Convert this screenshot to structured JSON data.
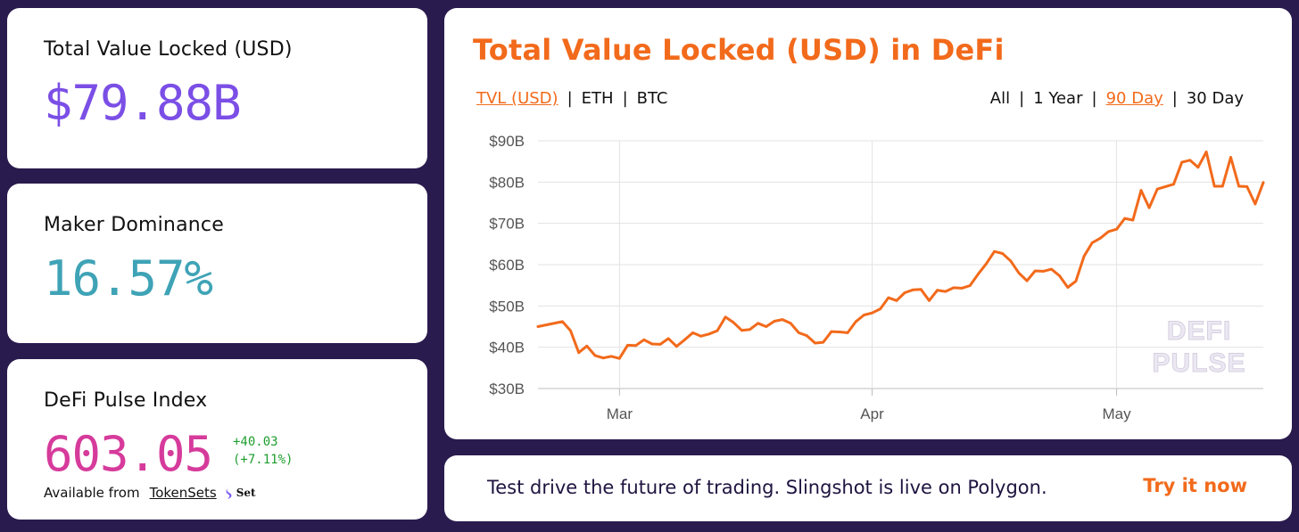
{
  "tvl_card": {
    "label": "Total Value Locked (USD)",
    "value": "$79.88B"
  },
  "maker_card": {
    "label": "Maker Dominance",
    "value": "16.57%"
  },
  "dpi_card": {
    "label": "DeFi Pulse Index",
    "value": "603.05",
    "change_abs": "+40.03",
    "change_pct": "(+7.11%)",
    "available_text": "Available from",
    "link_label": "TokenSets",
    "set_logo_text": "Set"
  },
  "chart_card": {
    "title": "Total Value Locked (USD) in DeFi",
    "currency_options": [
      {
        "label": "TVL (USD)",
        "active": true
      },
      {
        "label": "ETH",
        "active": false
      },
      {
        "label": "BTC",
        "active": false
      }
    ],
    "range_options": [
      {
        "label": "All",
        "active": false
      },
      {
        "label": "1 Year",
        "active": false
      },
      {
        "label": "90 Day",
        "active": true
      },
      {
        "label": "30 Day",
        "active": false
      }
    ],
    "watermark_lines": [
      "DEFI",
      "PULSE"
    ]
  },
  "promo": {
    "text": "Test drive the future of trading. Slingshot is live on Polygon.",
    "cta": "Try it now"
  },
  "colors": {
    "background": "#2a1b4e",
    "accent_orange": "#f26a1b",
    "tvl_purple": "#7b4fe6",
    "maker_teal": "#3fa3b6",
    "dpi_pink": "#d63b9b",
    "positive_green": "#1e9e2e"
  },
  "chart_data": {
    "type": "line",
    "title": "Total Value Locked (USD) in DeFi",
    "xlabel": "",
    "ylabel": "",
    "ylim": [
      30,
      90
    ],
    "y_ticks": [
      30,
      40,
      50,
      60,
      70,
      80,
      90
    ],
    "y_tick_labels": [
      "$30B",
      "$40B",
      "$50B",
      "$60B",
      "$70B",
      "$80B",
      "$90B"
    ],
    "y_unit": "USD billions",
    "x_ticks": [
      "Mar",
      "Apr",
      "May"
    ],
    "x_tick_dates": [
      "2021-03-01",
      "2021-04-01",
      "2021-05-01"
    ],
    "x_range": [
      "2021-02-19",
      "2021-05-19"
    ],
    "grid": true,
    "legend": "none",
    "x": [
      "2021-02-19",
      "2021-02-22",
      "2021-02-23",
      "2021-02-24",
      "2021-02-25",
      "2021-02-26",
      "2021-02-27",
      "2021-02-28",
      "2021-03-01",
      "2021-03-02",
      "2021-03-03",
      "2021-03-04",
      "2021-03-05",
      "2021-03-06",
      "2021-03-07",
      "2021-03-08",
      "2021-03-09",
      "2021-03-10",
      "2021-03-11",
      "2021-03-12",
      "2021-03-13",
      "2021-03-14",
      "2021-03-15",
      "2021-03-16",
      "2021-03-17",
      "2021-03-18",
      "2021-03-19",
      "2021-03-20",
      "2021-03-21",
      "2021-03-22",
      "2021-03-23",
      "2021-03-24",
      "2021-03-25",
      "2021-03-26",
      "2021-03-27",
      "2021-03-28",
      "2021-03-29",
      "2021-03-30",
      "2021-03-31",
      "2021-04-01",
      "2021-04-02",
      "2021-04-03",
      "2021-04-04",
      "2021-04-05",
      "2021-04-06",
      "2021-04-07",
      "2021-04-08",
      "2021-04-09",
      "2021-04-10",
      "2021-04-11",
      "2021-04-12",
      "2021-04-13",
      "2021-04-14",
      "2021-04-15",
      "2021-04-16",
      "2021-04-17",
      "2021-04-18",
      "2021-04-19",
      "2021-04-20",
      "2021-04-21",
      "2021-04-22",
      "2021-04-23",
      "2021-04-24",
      "2021-04-25",
      "2021-04-26",
      "2021-04-27",
      "2021-04-28",
      "2021-04-29",
      "2021-04-30",
      "2021-05-01",
      "2021-05-02",
      "2021-05-03",
      "2021-05-04",
      "2021-05-05",
      "2021-05-06",
      "2021-05-07",
      "2021-05-08",
      "2021-05-09",
      "2021-05-10",
      "2021-05-11",
      "2021-05-12",
      "2021-05-13",
      "2021-05-14",
      "2021-05-15",
      "2021-05-16",
      "2021-05-17",
      "2021-05-18",
      "2021-05-19"
    ],
    "series": [
      {
        "values": [
          45.0,
          46.2,
          44.0,
          38.7,
          40.3,
          38.0,
          37.4,
          37.8,
          37.3,
          40.5,
          40.4,
          41.8,
          40.8,
          40.7,
          42.1,
          40.2,
          41.8,
          43.5,
          42.7,
          43.2,
          44.0,
          47.3,
          46.0,
          44.1,
          44.3,
          45.8,
          45.0,
          46.3,
          46.7,
          45.8,
          43.5,
          42.8,
          41.0,
          41.2,
          43.8,
          43.7,
          43.5,
          46.2,
          47.8,
          48.3,
          49.3,
          52.0,
          51.3,
          53.2,
          53.9,
          54.0,
          51.3,
          53.8,
          53.5,
          54.4,
          54.3,
          54.9,
          57.7,
          60.2,
          63.2,
          62.7,
          60.9,
          58.0,
          56.1,
          58.5,
          58.4,
          58.9,
          57.3,
          54.5,
          56.0,
          62.0,
          65.3,
          66.4,
          68.0,
          68.6,
          71.2,
          70.8,
          78.0,
          73.8,
          78.3,
          78.9,
          79.5,
          84.8,
          85.3,
          83.6,
          87.3,
          79.0,
          79.0,
          86.0,
          79.0,
          78.9,
          74.7,
          79.9
        ]
      }
    ]
  }
}
